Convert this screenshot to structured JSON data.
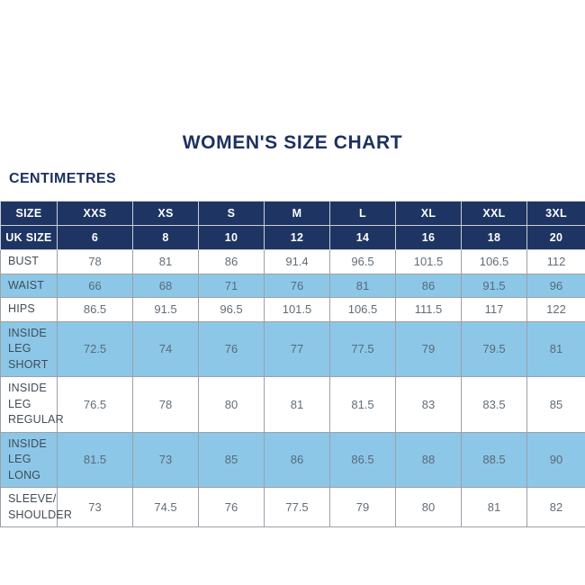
{
  "page": {
    "title": "WOMEN'S SIZE CHART",
    "subtitle": "CENTIMETRES"
  },
  "chart_data": {
    "type": "table",
    "title": "WOMEN'S SIZE CHART",
    "units_label": "CENTIMETRES",
    "columns": [
      "SIZE",
      "XXS",
      "XS",
      "S",
      "M",
      "L",
      "XL",
      "XXL",
      "3XL"
    ],
    "uk_size_row": {
      "label": "UK SIZE",
      "values": [
        "6",
        "8",
        "10",
        "12",
        "14",
        "16",
        "18",
        "20"
      ]
    },
    "rows": [
      {
        "label": "BUST",
        "values": [
          "78",
          "81",
          "86",
          "91.4",
          "96.5",
          "101.5",
          "106.5",
          "112"
        ]
      },
      {
        "label": "WAIST",
        "values": [
          "66",
          "68",
          "71",
          "76",
          "81",
          "86",
          "91.5",
          "96"
        ]
      },
      {
        "label": "HIPS",
        "values": [
          "86.5",
          "91.5",
          "96.5",
          "101.5",
          "106.5",
          "111.5",
          "117",
          "122"
        ]
      },
      {
        "label": "INSIDE LEG\nSHORT",
        "values": [
          "72.5",
          "74",
          "76",
          "77",
          "77.5",
          "79",
          "79.5",
          "81"
        ]
      },
      {
        "label": "INSIDE LEG\nREGULAR",
        "values": [
          "76.5",
          "78",
          "80",
          "81",
          "81.5",
          "83",
          "83.5",
          "85"
        ]
      },
      {
        "label": "INSIDE LEG\nLONG",
        "values": [
          "81.5",
          "73",
          "85",
          "86",
          "86.5",
          "88",
          "88.5",
          "90"
        ]
      },
      {
        "label": "SLEEVE/\nSHOULDER",
        "values": [
          "73",
          "74.5",
          "76",
          "77.5",
          "79",
          "80",
          "81",
          "82"
        ]
      }
    ]
  },
  "colors": {
    "header_navy": "#1e3563",
    "title_navy": "#1d3160",
    "row_light_blue": "#8dc7e8",
    "border_gray": "#9ba1a8",
    "label_text": "#424c56",
    "value_text": "#626d77"
  }
}
